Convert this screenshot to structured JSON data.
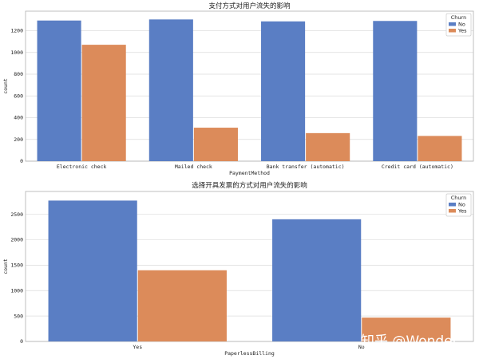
{
  "chart_data": [
    {
      "type": "bar",
      "title": "支付方式对用户流失的影响",
      "xlabel": "PaymentMethod",
      "ylabel": "count",
      "categories": [
        "Electronic check",
        "Mailed check",
        "Bank transfer (automatic)",
        "Credit card (automatic)"
      ],
      "series": [
        {
          "name": "No",
          "values": [
            1294,
            1304,
            1286,
            1290
          ]
        },
        {
          "name": "Yes",
          "values": [
            1071,
            308,
            258,
            232
          ]
        }
      ],
      "ylim": [
        0,
        1380
      ],
      "yticks": [
        "0",
        "200",
        "400",
        "600",
        "800",
        "1000",
        "1200"
      ],
      "legend": {
        "title": "Churn",
        "position": "top-right"
      },
      "colors": {
        "No": "#5a7ec4",
        "Yes": "#dc8b5a"
      },
      "grid": true
    },
    {
      "type": "bar",
      "title": "选择开具发票的方式对用户流失的影响",
      "xlabel": "PaperlessBilling",
      "ylabel": "count",
      "categories": [
        "Yes",
        "No"
      ],
      "series": [
        {
          "name": "No",
          "values": [
            2771,
            2403
          ]
        },
        {
          "name": "Yes",
          "values": [
            1400,
            469
          ]
        }
      ],
      "ylim": [
        0,
        2950
      ],
      "yticks": [
        "0",
        "500",
        "1000",
        "1500",
        "2000",
        "2500"
      ],
      "legend": {
        "title": "Churn",
        "position": "top-right"
      },
      "colors": {
        "No": "#5a7ec4",
        "Yes": "#dc8b5a"
      },
      "grid": true
    }
  ],
  "watermark": "知乎 @Wonder"
}
